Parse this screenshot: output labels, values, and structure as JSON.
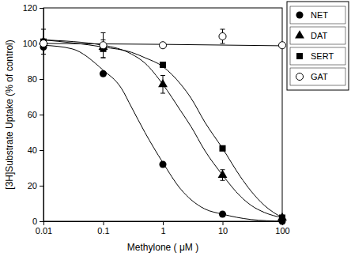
{
  "chart_data": {
    "type": "scatter",
    "x_label": "Methylone ( μM )",
    "y_label": "[3H]Substrate Uptake (% of control)",
    "log": "x",
    "xlim": [
      0.01,
      100
    ],
    "xticks": [
      0.01,
      0.1,
      1,
      10,
      100
    ],
    "ylim": [
      0,
      120
    ],
    "yticks": [
      0,
      20,
      40,
      60,
      80,
      100,
      120
    ],
    "legend": "outside-top-right",
    "series": [
      {
        "name": "NET",
        "color": "#000000",
        "marker": "circle",
        "x": [
          0.01,
          0.1,
          1,
          10,
          100
        ],
        "values": [
          98,
          83,
          32,
          4,
          0
        ],
        "errors": [
          0,
          0,
          0,
          0,
          0
        ],
        "fit_x": [
          0.01,
          0.03,
          0.1,
          0.2,
          0.3,
          0.5,
          1,
          2,
          3,
          5,
          10,
          30,
          100
        ],
        "fit": [
          99,
          97,
          85,
          75,
          64,
          50,
          33,
          18,
          12,
          7,
          4,
          1,
          0
        ]
      },
      {
        "name": "DAT",
        "color": "#000000",
        "marker": "triangle",
        "x": [
          0.01,
          0.1,
          1,
          10,
          100
        ],
        "values": [
          101,
          98,
          77,
          26,
          2
        ],
        "errors": [
          0,
          0,
          5,
          3,
          0
        ],
        "fit_x": [
          0.01,
          0.1,
          0.3,
          0.5,
          1,
          2,
          3,
          5,
          10,
          20,
          30,
          50,
          100
        ],
        "fit": [
          102,
          99,
          94,
          89,
          77,
          62,
          53,
          40,
          26,
          14,
          9,
          5,
          2
        ]
      },
      {
        "name": "SERT",
        "color": "#000000",
        "marker": "square",
        "x": [
          0.01,
          0.1,
          1,
          10,
          100
        ],
        "values": [
          101,
          97,
          88,
          41,
          2
        ],
        "errors": [
          7,
          5,
          0,
          0,
          0
        ],
        "fit_x": [
          0.01,
          0.1,
          0.3,
          0.5,
          1,
          2,
          3,
          5,
          10,
          20,
          30,
          50,
          100
        ],
        "fit": [
          102,
          98,
          95,
          92,
          87,
          77,
          69,
          56,
          41,
          25,
          17,
          9,
          2
        ]
      },
      {
        "name": "GAT",
        "color": "#000000",
        "marker": "open-circle",
        "x": [
          0.01,
          0.1,
          1,
          10,
          100
        ],
        "values": [
          100,
          99,
          99,
          104,
          99
        ],
        "errors": [
          0,
          7,
          0,
          4,
          0
        ],
        "fit_x": [
          0.01,
          1,
          100
        ],
        "fit": [
          100,
          99.5,
          98.7
        ]
      }
    ]
  }
}
